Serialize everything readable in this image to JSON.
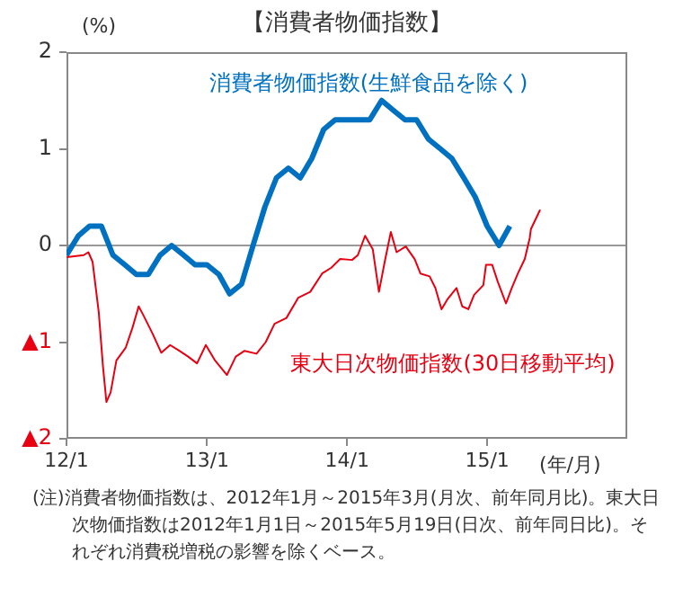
{
  "chart_data": {
    "type": "line",
    "title": "【消費者物価指数】",
    "ylabel": "(%)",
    "xlabel": "(年/月)",
    "xlim": [
      "2012-01-01",
      "2016-01-01"
    ],
    "xticks": [
      {
        "value": "2012-01-01",
        "label": "12/1"
      },
      {
        "value": "2013-01-01",
        "label": "13/1"
      },
      {
        "value": "2014-01-01",
        "label": "14/1"
      },
      {
        "value": "2015-01-01",
        "label": "15/1"
      }
    ],
    "ylim": [
      -2,
      2
    ],
    "yticks": [
      {
        "value": -2,
        "label": "▲2"
      },
      {
        "value": -1,
        "label": "▲1"
      },
      0,
      1,
      2
    ],
    "grid": false,
    "legend": false,
    "marker": "none",
    "line_style": "solid",
    "ref_lines": [
      {
        "axis": "y",
        "value": 0,
        "label": null,
        "color": "#999999"
      }
    ],
    "annotations": [
      "(注)消費者物価指数は、2012年1月～2015年3月(月次、前年同月比)。東大日次物価指数は2012年1月1日～2015年5月19日(日次、前年同日比)。それぞれ消費税増税の影響を除くベース。"
    ],
    "series": [
      {
        "name": "消費者物価指数(生鮮食品を除く)",
        "color": "#0070c0",
        "x": [
          "2012-01",
          "2012-02",
          "2012-03",
          "2012-04",
          "2012-05",
          "2012-06",
          "2012-07",
          "2012-08",
          "2012-09",
          "2012-10",
          "2012-11",
          "2012-12",
          "2013-01",
          "2013-02",
          "2013-03",
          "2013-04",
          "2013-05",
          "2013-06",
          "2013-07",
          "2013-08",
          "2013-09",
          "2013-10",
          "2013-11",
          "2013-12",
          "2014-01",
          "2014-02",
          "2014-03",
          "2014-04",
          "2014-05",
          "2014-06",
          "2014-07",
          "2014-08",
          "2014-09",
          "2014-10",
          "2014-11",
          "2014-12",
          "2015-01",
          "2015-02",
          "2015-03"
        ],
        "values": [
          -0.1,
          0.1,
          0.2,
          0.2,
          -0.1,
          -0.2,
          -0.3,
          -0.3,
          -0.1,
          0.0,
          -0.1,
          -0.2,
          -0.2,
          -0.3,
          -0.5,
          -0.4,
          0.0,
          0.4,
          0.7,
          0.8,
          0.7,
          0.9,
          1.2,
          1.3,
          1.3,
          1.3,
          1.3,
          1.5,
          1.4,
          1.3,
          1.3,
          1.1,
          1.0,
          0.9,
          0.7,
          0.5,
          0.2,
          0.0,
          0.2
        ]
      },
      {
        "name": "東大日次物価指数(30日移動平均)",
        "color": "#e60012",
        "x": [
          "2012-01-02",
          "2012-02-15",
          "2012-02-27",
          "2012-03-09",
          "2012-03-25",
          "2012-04-05",
          "2012-04-14",
          "2012-04-25",
          "2012-05-10",
          "2012-06-03",
          "2012-06-21",
          "2012-07-07",
          "2012-07-19",
          "2012-08-12",
          "2012-09-04",
          "2012-09-27",
          "2012-10-21",
          "2012-11-13",
          "2012-12-06",
          "2012-12-29",
          "2013-01-22",
          "2013-02-22",
          "2013-03-17",
          "2013-04-09",
          "2013-05-10",
          "2013-06-03",
          "2013-06-26",
          "2013-07-27",
          "2013-08-27",
          "2013-09-27",
          "2013-10-28",
          "2013-11-21",
          "2013-12-14",
          "2014-01-14",
          "2014-01-29",
          "2014-02-17",
          "2014-03-09",
          "2014-03-25",
          "2014-04-09",
          "2014-04-25",
          "2014-05-10",
          "2014-06-03",
          "2014-06-26",
          "2014-07-11",
          "2014-08-04",
          "2014-08-19",
          "2014-09-04",
          "2014-09-19",
          "2014-10-13",
          "2014-10-28",
          "2014-11-13",
          "2014-11-28",
          "2014-12-22",
          "2014-12-29",
          "2015-01-14",
          "2015-01-29",
          "2015-02-19",
          "2015-03-06",
          "2015-03-22",
          "2015-04-09",
          "2015-04-22",
          "2015-04-25",
          "2015-05-19"
        ],
        "values": [
          -0.12,
          -0.1,
          -0.07,
          -0.17,
          -0.69,
          -1.25,
          -1.62,
          -1.52,
          -1.19,
          -1.06,
          -0.85,
          -0.63,
          -0.72,
          -0.91,
          -1.11,
          -1.03,
          -1.09,
          -1.15,
          -1.22,
          -1.03,
          -1.19,
          -1.34,
          -1.15,
          -1.09,
          -1.12,
          -1.0,
          -0.81,
          -0.75,
          -0.54,
          -0.48,
          -0.29,
          -0.23,
          -0.14,
          -0.15,
          -0.1,
          0.1,
          -0.04,
          -0.48,
          -0.17,
          0.14,
          -0.07,
          -0.01,
          -0.14,
          -0.29,
          -0.32,
          -0.44,
          -0.66,
          -0.56,
          -0.44,
          -0.63,
          -0.66,
          -0.51,
          -0.41,
          -0.2,
          -0.2,
          -0.38,
          -0.6,
          -0.44,
          -0.29,
          -0.14,
          0.08,
          0.17,
          0.37
        ]
      }
    ]
  }
}
